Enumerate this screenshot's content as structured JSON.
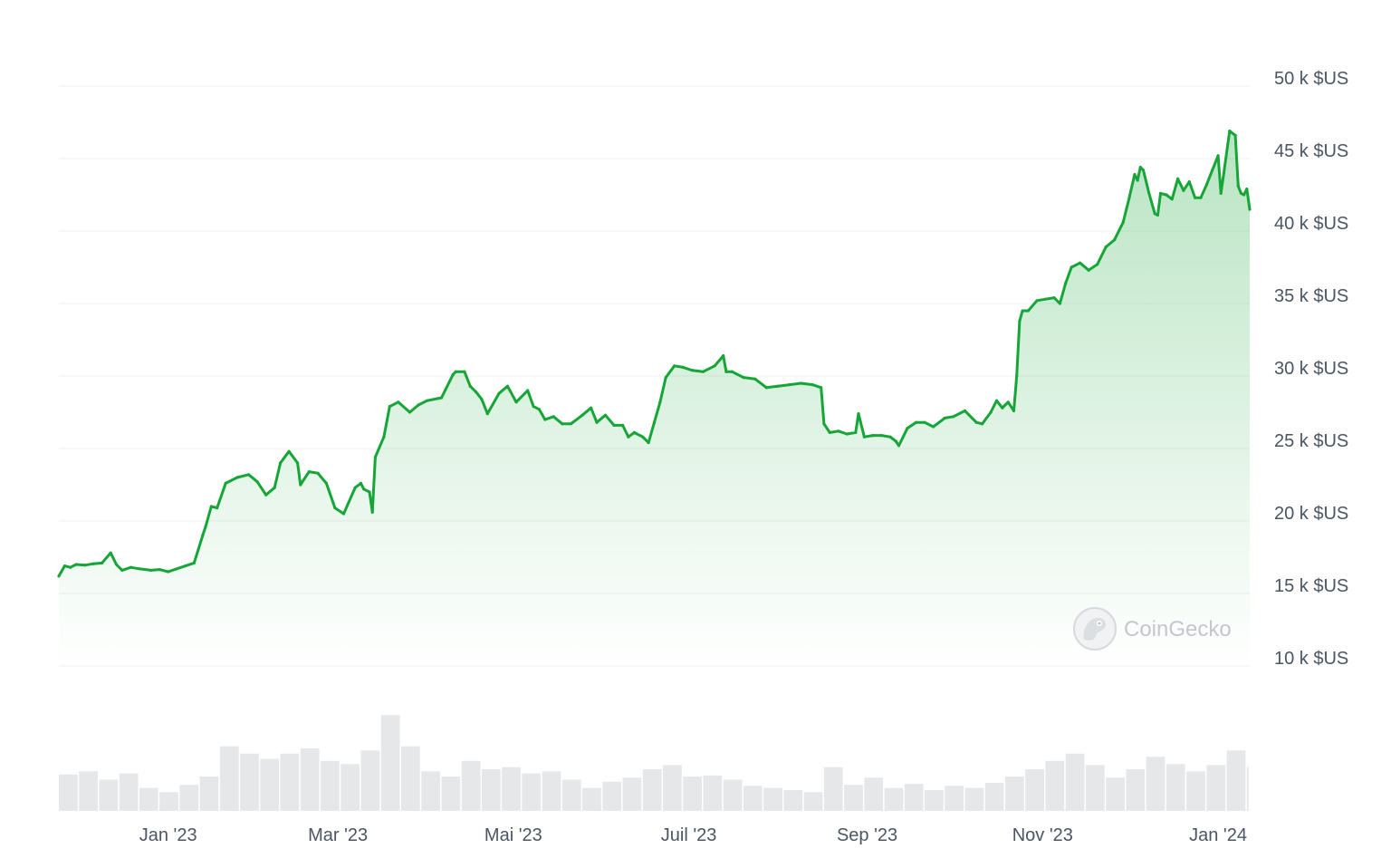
{
  "chart_data": {
    "type": "area",
    "currency_unit": "$US",
    "y_ticks": [
      {
        "value": 10000,
        "label": "10 k $US"
      },
      {
        "value": 15000,
        "label": "15 k $US"
      },
      {
        "value": 20000,
        "label": "20 k $US"
      },
      {
        "value": 25000,
        "label": "25 k $US"
      },
      {
        "value": 30000,
        "label": "30 k $US"
      },
      {
        "value": 35000,
        "label": "35 k $US"
      },
      {
        "value": 40000,
        "label": "40 k $US"
      },
      {
        "value": 45000,
        "label": "45 k $US"
      },
      {
        "value": 50000,
        "label": "50 k $US"
      }
    ],
    "ylim": [
      10000,
      50000
    ],
    "x_range": [
      "2022-11-24",
      "2024-01-12"
    ],
    "x_ticks": [
      {
        "date": "2023-01-01",
        "label": "Jan '23"
      },
      {
        "date": "2023-03-01",
        "label": "Mar '23"
      },
      {
        "date": "2023-05-01",
        "label": "Mai '23"
      },
      {
        "date": "2023-07-01",
        "label": "Juil '23"
      },
      {
        "date": "2023-09-01",
        "label": "Sep '23"
      },
      {
        "date": "2023-11-01",
        "label": "Nov '23"
      },
      {
        "date": "2024-01-01",
        "label": "Jan '24"
      }
    ],
    "grid": true,
    "line_color": "#16a637",
    "series": [
      {
        "x": [
          "2022-11-24",
          "2022-11-26",
          "2022-11-28",
          "2022-11-30",
          "2022-12-03",
          "2022-12-06",
          "2022-12-09",
          "2022-12-12",
          "2022-12-14",
          "2022-12-16",
          "2022-12-19",
          "2022-12-22",
          "2022-12-26",
          "2022-12-29",
          "2023-01-01",
          "2023-01-04",
          "2023-01-07",
          "2023-01-10",
          "2023-01-13",
          "2023-01-14",
          "2023-01-16",
          "2023-01-18",
          "2023-01-21",
          "2023-01-25",
          "2023-01-29",
          "2023-02-01",
          "2023-02-04",
          "2023-02-07",
          "2023-02-09",
          "2023-02-12",
          "2023-02-15",
          "2023-02-16",
          "2023-02-19",
          "2023-02-22",
          "2023-02-25",
          "2023-02-28",
          "2023-03-03",
          "2023-03-07",
          "2023-03-09",
          "2023-03-10",
          "2023-03-12",
          "2023-03-13",
          "2023-03-14",
          "2023-03-17",
          "2023-03-19",
          "2023-03-22",
          "2023-03-26",
          "2023-03-29",
          "2023-04-01",
          "2023-04-06",
          "2023-04-10",
          "2023-04-11",
          "2023-04-14",
          "2023-04-16",
          "2023-04-18",
          "2023-04-20",
          "2023-04-22",
          "2023-04-26",
          "2023-04-29",
          "2023-05-02",
          "2023-05-06",
          "2023-05-08",
          "2023-05-10",
          "2023-05-12",
          "2023-05-15",
          "2023-05-18",
          "2023-05-21",
          "2023-05-25",
          "2023-05-28",
          "2023-05-30",
          "2023-06-02",
          "2023-06-05",
          "2023-06-08",
          "2023-06-10",
          "2023-06-12",
          "2023-06-15",
          "2023-06-17",
          "2023-06-19",
          "2023-06-21",
          "2023-06-23",
          "2023-06-26",
          "2023-06-29",
          "2023-07-02",
          "2023-07-06",
          "2023-07-10",
          "2023-07-13",
          "2023-07-14",
          "2023-07-16",
          "2023-07-20",
          "2023-07-24",
          "2023-07-28",
          "2023-08-01",
          "2023-08-05",
          "2023-08-09",
          "2023-08-13",
          "2023-08-16",
          "2023-08-17",
          "2023-08-19",
          "2023-08-22",
          "2023-08-25",
          "2023-08-28",
          "2023-08-29",
          "2023-08-31",
          "2023-09-03",
          "2023-09-06",
          "2023-09-09",
          "2023-09-11",
          "2023-09-12",
          "2023-09-15",
          "2023-09-18",
          "2023-09-21",
          "2023-09-24",
          "2023-09-28",
          "2023-10-01",
          "2023-10-05",
          "2023-10-09",
          "2023-10-11",
          "2023-10-14",
          "2023-10-16",
          "2023-10-18",
          "2023-10-20",
          "2023-10-22",
          "2023-10-23",
          "2023-10-24",
          "2023-10-25",
          "2023-10-27",
          "2023-10-30",
          "2023-11-02",
          "2023-11-05",
          "2023-11-07",
          "2023-11-09",
          "2023-11-11",
          "2023-11-14",
          "2023-11-17",
          "2023-11-20",
          "2023-11-23",
          "2023-11-26",
          "2023-11-29",
          "2023-12-01",
          "2023-12-03",
          "2023-12-04",
          "2023-12-05",
          "2023-12-06",
          "2023-12-08",
          "2023-12-10",
          "2023-12-11",
          "2023-12-12",
          "2023-12-14",
          "2023-12-16",
          "2023-12-18",
          "2023-12-20",
          "2023-12-22",
          "2023-12-24",
          "2023-12-26",
          "2023-12-28",
          "2023-12-30",
          "2024-01-01",
          "2024-01-02",
          "2024-01-03",
          "2024-01-05",
          "2024-01-07",
          "2024-01-08",
          "2024-01-09",
          "2024-01-10",
          "2024-01-11",
          "2024-01-12"
        ],
        "y": [
          16200,
          16900,
          16800,
          17000,
          16950,
          17050,
          17100,
          17800,
          17000,
          16600,
          16800,
          16700,
          16600,
          16650,
          16500,
          16700,
          16900,
          17100,
          19000,
          19600,
          21000,
          20900,
          22600,
          23000,
          23200,
          22700,
          21800,
          22300,
          24000,
          24800,
          24000,
          22500,
          23400,
          23300,
          22600,
          20900,
          20500,
          22300,
          22600,
          22200,
          22000,
          20600,
          24400,
          25800,
          27900,
          28200,
          27500,
          28000,
          28300,
          28500,
          30100,
          30300,
          30300,
          29300,
          28900,
          28400,
          27400,
          28800,
          29300,
          28200,
          29000,
          27900,
          27700,
          27000,
          27200,
          26700,
          26700,
          27300,
          27800,
          26800,
          27300,
          26600,
          26600,
          25800,
          26100,
          25800,
          25400,
          26800,
          28200,
          29900,
          30700,
          30600,
          30400,
          30300,
          30700,
          31400,
          30300,
          30300,
          29900,
          29800,
          29200,
          29300,
          29400,
          29500,
          29400,
          29200,
          26700,
          26100,
          26200,
          26000,
          26100,
          27400,
          25800,
          25900,
          25900,
          25800,
          25500,
          25200,
          26400,
          26800,
          26800,
          26500,
          27100,
          27200,
          27600,
          26800,
          26700,
          27500,
          28300,
          27800,
          28200,
          27600,
          30000,
          33800,
          34500,
          34500,
          35200,
          35300,
          35400,
          35000,
          36400,
          37500,
          37800,
          37300,
          37700,
          38900,
          39400,
          40600,
          42200,
          43900,
          43500,
          44400,
          44200,
          42600,
          41200,
          41100,
          42600,
          42500,
          42200,
          43600,
          42800,
          43400,
          42300,
          42300,
          43200,
          44200,
          45200,
          42600,
          44000,
          46900,
          46600,
          43100,
          42600,
          42500,
          42900,
          41500
        ]
      }
    ],
    "volume": {
      "x": [
        "2022-11-24",
        "2022-12-01",
        "2022-12-08",
        "2022-12-15",
        "2022-12-22",
        "2022-12-29",
        "2023-01-05",
        "2023-01-12",
        "2023-01-19",
        "2023-01-26",
        "2023-02-02",
        "2023-02-09",
        "2023-02-16",
        "2023-02-23",
        "2023-03-02",
        "2023-03-09",
        "2023-03-16",
        "2023-03-23",
        "2023-03-30",
        "2023-04-06",
        "2023-04-13",
        "2023-04-20",
        "2023-04-27",
        "2023-05-04",
        "2023-05-11",
        "2023-05-18",
        "2023-05-25",
        "2023-06-01",
        "2023-06-08",
        "2023-06-15",
        "2023-06-22",
        "2023-06-29",
        "2023-07-06",
        "2023-07-13",
        "2023-07-20",
        "2023-07-27",
        "2023-08-03",
        "2023-08-10",
        "2023-08-17",
        "2023-08-24",
        "2023-08-31",
        "2023-09-07",
        "2023-09-14",
        "2023-09-21",
        "2023-09-28",
        "2023-10-05",
        "2023-10-12",
        "2023-10-19",
        "2023-10-26",
        "2023-11-02",
        "2023-11-09",
        "2023-11-16",
        "2023-11-23",
        "2023-11-30",
        "2023-12-07",
        "2023-12-14",
        "2023-12-21",
        "2023-12-28",
        "2024-01-04",
        "2024-01-11"
      ],
      "values": [
        0.35,
        0.38,
        0.3,
        0.36,
        0.22,
        0.18,
        0.25,
        0.33,
        0.62,
        0.55,
        0.5,
        0.55,
        0.6,
        0.48,
        0.45,
        0.58,
        0.92,
        0.62,
        0.38,
        0.33,
        0.48,
        0.4,
        0.42,
        0.36,
        0.38,
        0.3,
        0.22,
        0.28,
        0.32,
        0.4,
        0.44,
        0.33,
        0.34,
        0.3,
        0.24,
        0.22,
        0.2,
        0.18,
        0.42,
        0.25,
        0.32,
        0.22,
        0.26,
        0.2,
        0.24,
        0.22,
        0.27,
        0.33,
        0.4,
        0.48,
        0.55,
        0.44,
        0.32,
        0.4,
        0.52,
        0.45,
        0.38,
        0.44,
        0.58,
        0.42
      ]
    }
  },
  "watermark": {
    "brand": "CoinGecko",
    "logo_icon": "coingecko-gecko-icon"
  }
}
